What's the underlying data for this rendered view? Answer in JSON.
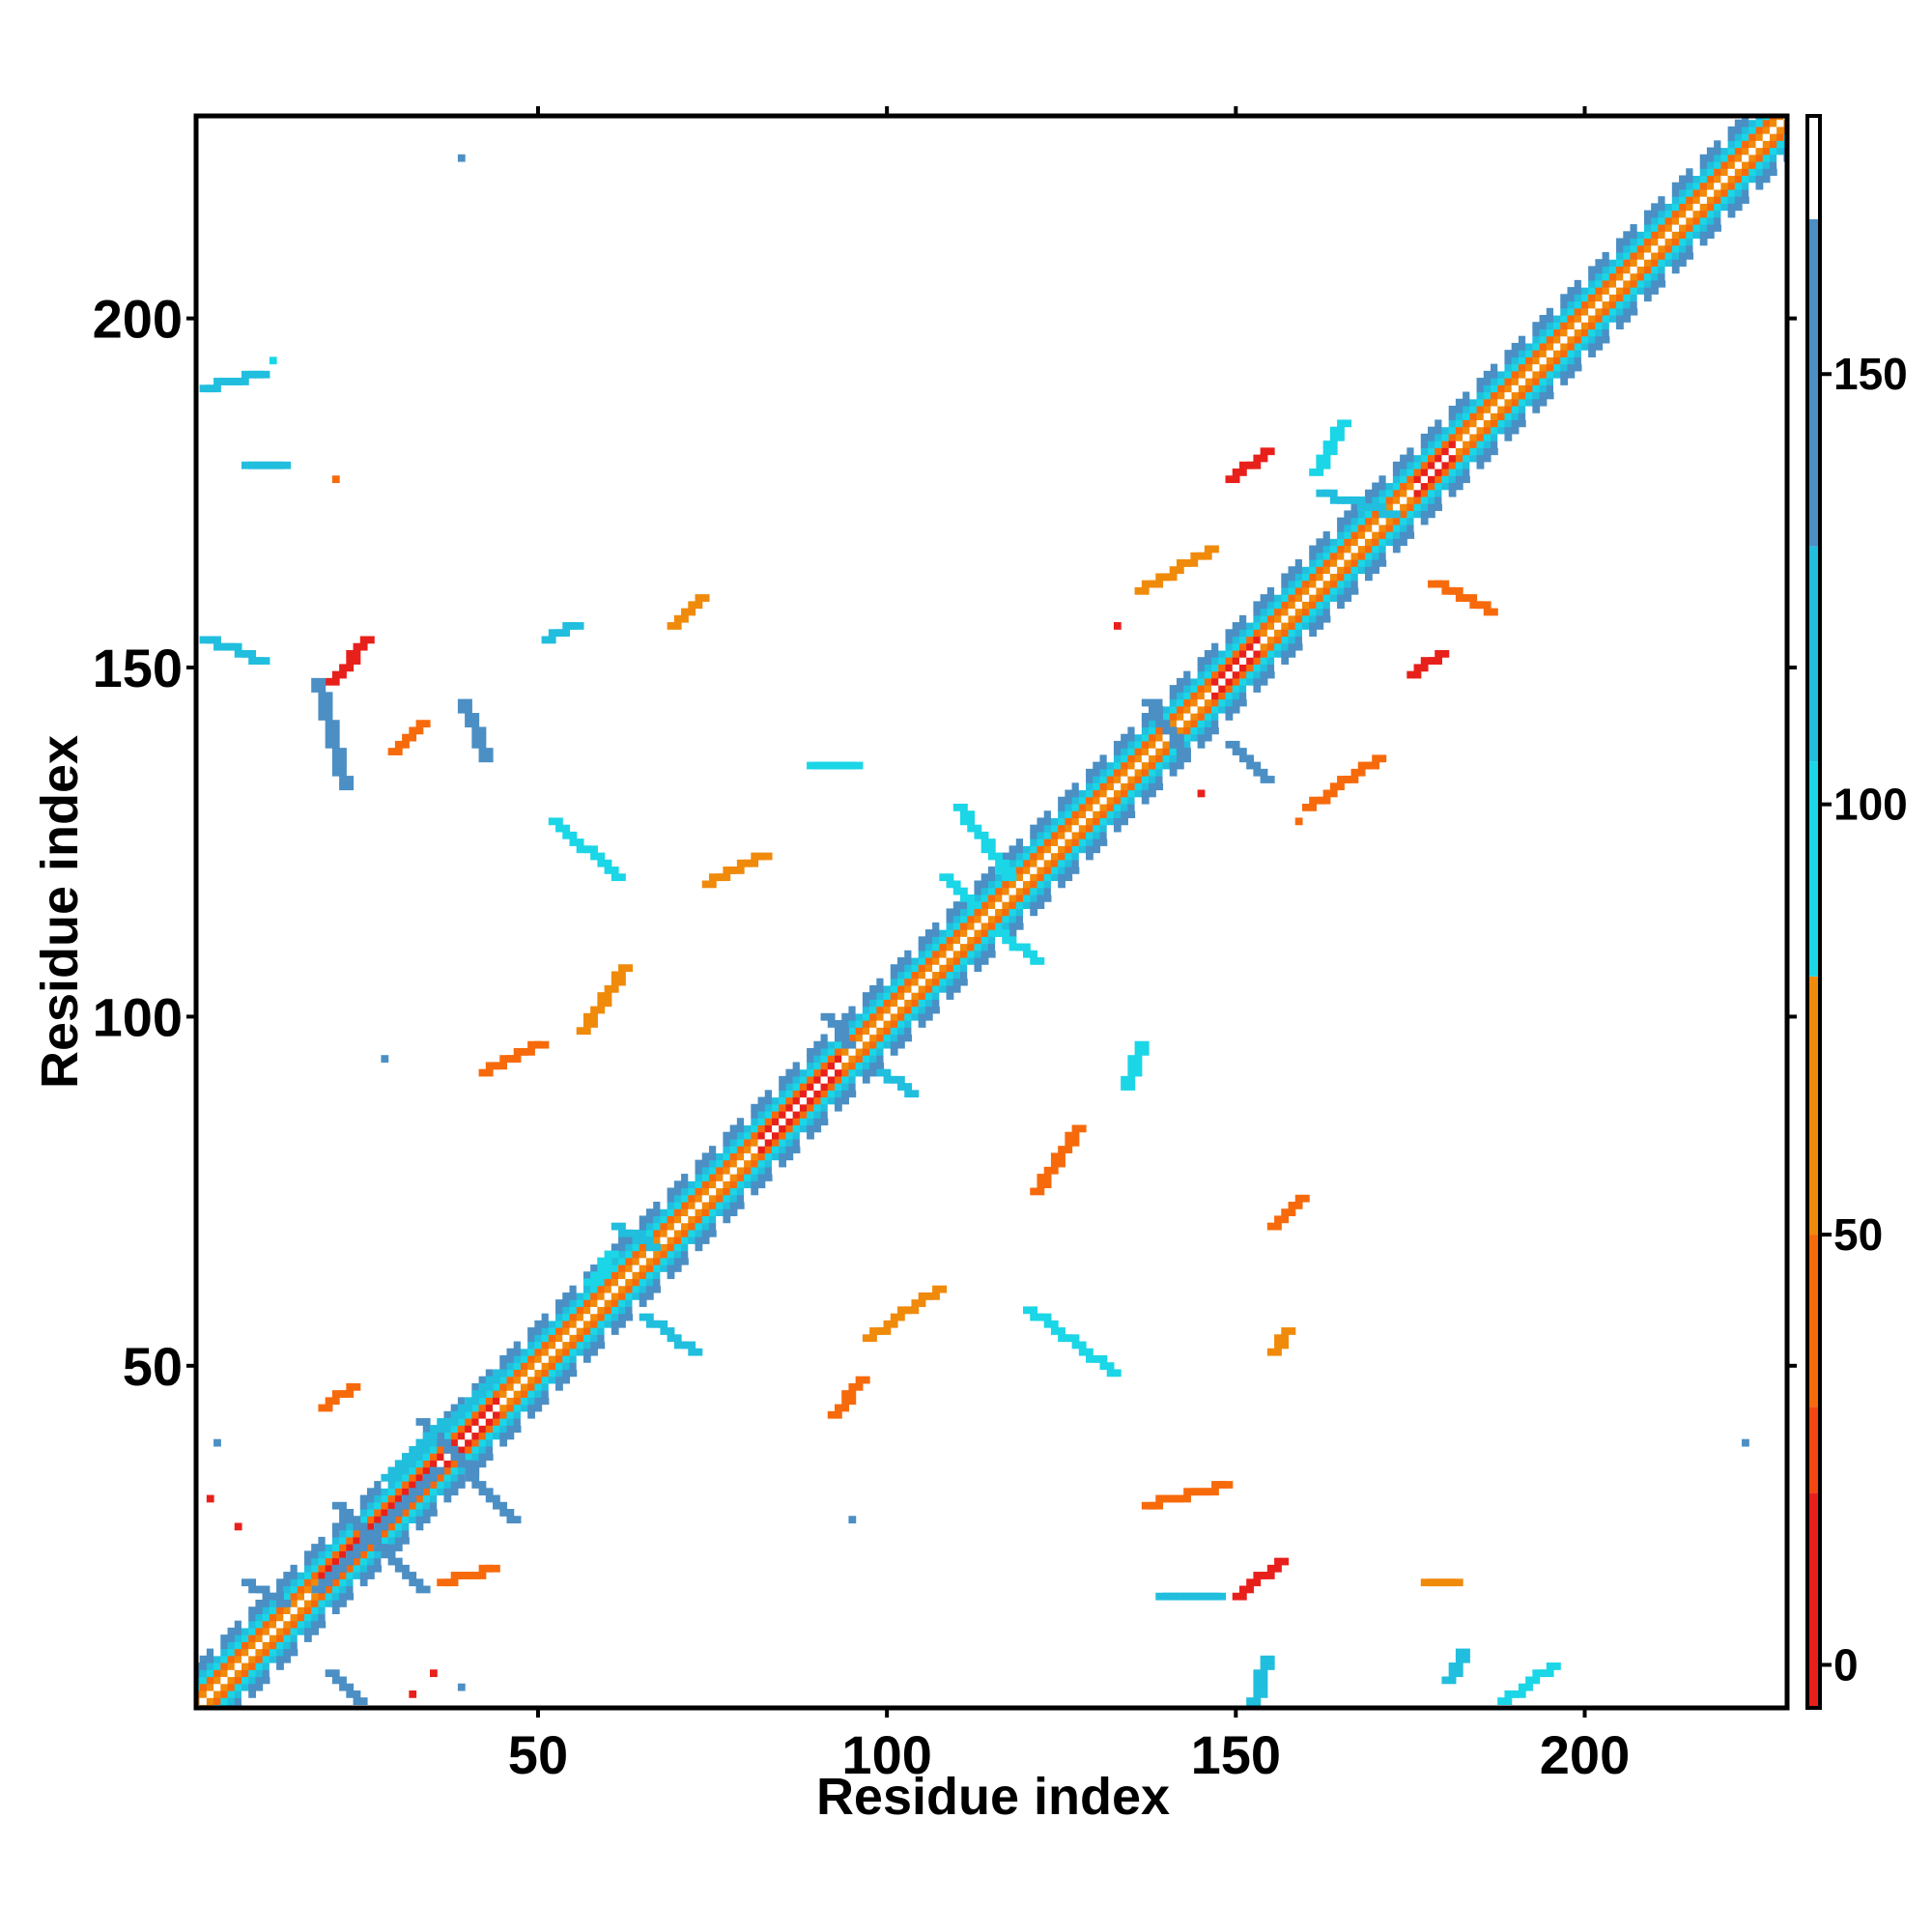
{
  "chart_data": {
    "type": "heatmap",
    "title": "",
    "xlabel": "Residue index",
    "ylabel": "Residue index",
    "xlim": [
      1,
      229
    ],
    "ylim": [
      1,
      229
    ],
    "x_ticks": [
      50,
      100,
      150,
      200
    ],
    "y_ticks": [
      50,
      100,
      150,
      200
    ],
    "colorbar": {
      "range": [
        -5,
        180
      ],
      "ticks": [
        0,
        50,
        100,
        150
      ],
      "segments": [
        {
          "from": -5,
          "to": 20,
          "color": "#e8201b"
        },
        {
          "from": 20,
          "to": 30,
          "color": "#f3470f"
        },
        {
          "from": 30,
          "to": 50,
          "color": "#f76a0c"
        },
        {
          "from": 50,
          "to": 80,
          "color": "#f08a0b"
        },
        {
          "from": 80,
          "to": 105,
          "color": "#1bd6e6"
        },
        {
          "from": 105,
          "to": 130,
          "color": "#21bede"
        },
        {
          "from": 130,
          "to": 168,
          "color": "#4b8fc4"
        },
        {
          "from": 168,
          "to": 180,
          "color": "#ffffff"
        }
      ]
    },
    "diagonal": {
      "from": 1,
      "to": 229
    },
    "segments": [
      {
        "x1": 21,
        "y1": 30,
        "x2": 33,
        "y2": 18,
        "color": "#4b8fc4"
      },
      {
        "x1": 33,
        "y1": 42,
        "x2": 46,
        "y2": 28,
        "color": "#4b8fc4"
      },
      {
        "x1": 18,
        "y1": 18,
        "x2": 35,
        "y2": 35,
        "color": "#4b8fc4"
      },
      {
        "x1": 28,
        "y1": 34,
        "x2": 44,
        "y2": 49,
        "color": "#21bede"
      },
      {
        "x1": 150,
        "y1": 17,
        "x2": 156,
        "y2": 22,
        "color": "#e8201b"
      },
      {
        "x1": 20,
        "y1": 148,
        "x2": 25,
        "y2": 154,
        "color": "#e8201b"
      },
      {
        "x1": 149,
        "y1": 177,
        "x2": 154,
        "y2": 181,
        "color": "#e8201b"
      },
      {
        "x1": 175,
        "y1": 149,
        "x2": 179,
        "y2": 152,
        "color": "#e8201b"
      },
      {
        "x1": 42,
        "y1": 92,
        "x2": 50,
        "y2": 96,
        "color": "#f76a0c"
      },
      {
        "x1": 92,
        "y1": 43,
        "x2": 96,
        "y2": 48,
        "color": "#f76a0c"
      },
      {
        "x1": 74,
        "y1": 119,
        "x2": 82,
        "y2": 123,
        "color": "#f08a0b"
      },
      {
        "x1": 137,
        "y1": 30,
        "x2": 148,
        "y2": 33,
        "color": "#f76a0c"
      },
      {
        "x1": 139,
        "y1": 17,
        "x2": 147,
        "y2": 17,
        "color": "#21bede"
      },
      {
        "x1": 29,
        "y1": 138,
        "x2": 33,
        "y2": 142,
        "color": "#f76a0c"
      },
      {
        "x1": 160,
        "y1": 130,
        "x2": 170,
        "y2": 137,
        "color": "#f76a0c"
      },
      {
        "x1": 136,
        "y1": 161,
        "x2": 146,
        "y2": 167,
        "color": "#f08a0b"
      },
      {
        "x1": 121,
        "y1": 75,
        "x2": 127,
        "y2": 84,
        "color": "#f76a0c"
      },
      {
        "x1": 97,
        "y1": 54,
        "x2": 107,
        "y2": 61,
        "color": "#f08a0b"
      },
      {
        "x1": 120,
        "y1": 58,
        "x2": 132,
        "y2": 49,
        "color": "#1bd6e6"
      },
      {
        "x1": 52,
        "y1": 128,
        "x2": 61,
        "y2": 120,
        "color": "#1bd6e6"
      },
      {
        "x1": 56,
        "y1": 98,
        "x2": 62,
        "y2": 107,
        "color": "#f08a0b"
      },
      {
        "x1": 89,
        "y1": 136,
        "x2": 95,
        "y2": 136,
        "color": "#1bd6e6"
      },
      {
        "x1": 2,
        "y1": 190,
        "x2": 10,
        "y2": 192,
        "color": "#21bede"
      },
      {
        "x1": 2,
        "y1": 154,
        "x2": 10,
        "y2": 151,
        "color": "#21bede"
      },
      {
        "x1": 8,
        "y1": 179,
        "x2": 13,
        "y2": 179,
        "color": "#21bede"
      },
      {
        "x1": 108,
        "y1": 120,
        "x2": 112,
        "y2": 116,
        "color": "#1bd6e6"
      },
      {
        "x1": 116,
        "y1": 112,
        "x2": 121,
        "y2": 108,
        "color": "#1bd6e6"
      },
      {
        "x1": 110,
        "y1": 130,
        "x2": 117,
        "y2": 120,
        "color": "#1bd6e6"
      },
      {
        "x1": 99,
        "y1": 92,
        "x2": 103,
        "y2": 89,
        "color": "#21bede"
      },
      {
        "x1": 91,
        "y1": 100,
        "x2": 94,
        "y2": 96,
        "color": "#4b8fc4"
      },
      {
        "x1": 61,
        "y1": 70,
        "x2": 66,
        "y2": 67,
        "color": "#21bede"
      },
      {
        "x1": 57,
        "y1": 62,
        "x2": 60,
        "y2": 66,
        "color": "#1bd6e6"
      },
      {
        "x1": 65,
        "y1": 57,
        "x2": 72,
        "y2": 52,
        "color": "#21bede"
      },
      {
        "x1": 178,
        "y1": 162,
        "x2": 186,
        "y2": 158,
        "color": "#f76a0c"
      },
      {
        "x1": 161,
        "y1": 178,
        "x2": 165,
        "y2": 185,
        "color": "#1bd6e6"
      },
      {
        "x1": 162,
        "y1": 175,
        "x2": 172,
        "y2": 172,
        "color": "#21bede"
      },
      {
        "x1": 137,
        "y1": 145,
        "x2": 142,
        "y2": 138,
        "color": "#4b8fc4"
      },
      {
        "x1": 149,
        "y1": 139,
        "x2": 154,
        "y2": 134,
        "color": "#4b8fc4"
      },
      {
        "x1": 8,
        "y1": 19,
        "x2": 13,
        "y2": 16,
        "color": "#4b8fc4"
      },
      {
        "x1": 20,
        "y1": 6,
        "x2": 24,
        "y2": 2,
        "color": "#4b8fc4"
      },
      {
        "x1": 18,
        "y1": 148,
        "x2": 22,
        "y2": 133,
        "color": "#4b8fc4"
      },
      {
        "x1": 39,
        "y1": 145,
        "x2": 42,
        "y2": 137,
        "color": "#4b8fc4"
      },
      {
        "x1": 152,
        "y1": 1,
        "x2": 154,
        "y2": 8,
        "color": "#21bede"
      },
      {
        "x1": 180,
        "y1": 5,
        "x2": 182,
        "y2": 9,
        "color": "#21bede"
      },
      {
        "x1": 188,
        "y1": 2,
        "x2": 195,
        "y2": 7,
        "color": "#1bd6e6"
      },
      {
        "x1": 155,
        "y1": 52,
        "x2": 157,
        "y2": 55,
        "color": "#f08a0b"
      },
      {
        "x1": 155,
        "y1": 70,
        "x2": 159,
        "y2": 74,
        "color": "#f76a0c"
      },
      {
        "x1": 177,
        "y1": 19,
        "x2": 181,
        "y2": 19,
        "color": "#f08a0b"
      },
      {
        "x1": 36,
        "y1": 19,
        "x2": 43,
        "y2": 21,
        "color": "#f76a0c"
      },
      {
        "x1": 19,
        "y1": 44,
        "x2": 23,
        "y2": 47,
        "color": "#f76a0c"
      },
      {
        "x1": 51,
        "y1": 154,
        "x2": 55,
        "y2": 156,
        "color": "#21bede"
      },
      {
        "x1": 69,
        "y1": 156,
        "x2": 73,
        "y2": 160,
        "color": "#f08a0b"
      },
      {
        "x1": 134,
        "y1": 90,
        "x2": 136,
        "y2": 96,
        "color": "#1bd6e6"
      }
    ],
    "points": [
      [
        39,
        223,
        "#4b8fc4"
      ],
      [
        4,
        39,
        "#4b8fc4"
      ],
      [
        95,
        28,
        "#4b8fc4"
      ],
      [
        223,
        39,
        "#4b8fc4"
      ],
      [
        28,
        94,
        "#4b8fc4"
      ],
      [
        7,
        27,
        "#e8201b"
      ],
      [
        3,
        31,
        "#e8201b"
      ],
      [
        32,
        3,
        "#e8201b"
      ],
      [
        35,
        6,
        "#e8201b"
      ],
      [
        39,
        4,
        "#4b8fc4"
      ],
      [
        145,
        132,
        "#e8201b"
      ],
      [
        133,
        156,
        "#e8201b"
      ],
      [
        21,
        177,
        "#f76a0c"
      ],
      [
        12,
        194,
        "#1bd6e6"
      ],
      [
        159,
        128,
        "#f76a0c"
      ]
    ]
  }
}
